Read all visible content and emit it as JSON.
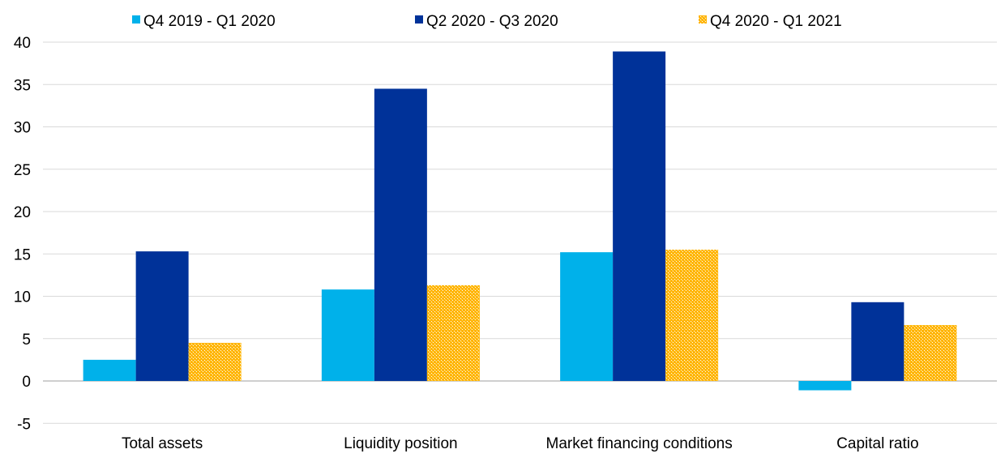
{
  "chart_data": {
    "type": "bar",
    "categories": [
      "Total assets",
      "Liquidity position",
      "Market financing conditions",
      "Capital ratio"
    ],
    "series": [
      {
        "name": "Q4 2019 - Q1 2020",
        "color": "#00B1EA",
        "values": [
          2.5,
          10.8,
          15.2,
          -1.1
        ]
      },
      {
        "name": "Q2 2020 - Q3 2020",
        "color": "#003299",
        "values": [
          15.3,
          34.5,
          38.9,
          9.3
        ]
      },
      {
        "name": "Q4 2020 - Q1 2021",
        "color": "#FFB400",
        "pattern": "checkered",
        "values": [
          4.5,
          11.3,
          15.5,
          6.6
        ]
      }
    ],
    "ylim": [
      -5,
      40
    ],
    "yticks": [
      -5,
      0,
      5,
      10,
      15,
      20,
      25,
      30,
      35,
      40
    ],
    "grid": true,
    "legend": "top"
  }
}
